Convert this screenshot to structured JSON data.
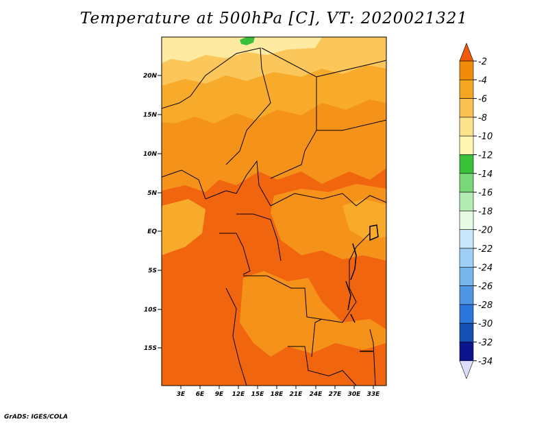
{
  "title": "Temperature at 500hPa [C], VT: 2020021321",
  "footer": "GrADS: IGES/COLA",
  "map": {
    "lat_labels": [
      "20N",
      "15N",
      "10N",
      "5N",
      "EQ",
      "5S",
      "10S",
      "15S"
    ],
    "lon_labels": [
      "3E",
      "6E",
      "9E",
      "12E",
      "15E",
      "18E",
      "21E",
      "24E",
      "27E",
      "30E",
      "33E"
    ]
  },
  "colorbar": {
    "labels": [
      "-2",
      "-4",
      "-6",
      "-8",
      "-10",
      "-12",
      "-14",
      "-16",
      "-18",
      "-20",
      "-22",
      "-24",
      "-26",
      "-28",
      "-30",
      "-32",
      "-34"
    ],
    "colors": [
      "#f05a0a",
      "#f08c0a",
      "#f5a620",
      "#fac050",
      "#fde28c",
      "#fff6b4",
      "#39c239",
      "#78d878",
      "#b4ecb4",
      "#e6fae6",
      "#c8e6fa",
      "#a0d0f5",
      "#78b6ee",
      "#5096e6",
      "#2a76dc",
      "#1450b4",
      "#0c148c",
      "#dcdcff"
    ]
  },
  "colors": {
    "deep_orange": "#f2650f",
    "orange": "#f5921a",
    "light_orange": "#f8ab2a",
    "pale_orange": "#fbc65a",
    "pale_yellow": "#feeaa0",
    "green": "#39c239"
  }
}
